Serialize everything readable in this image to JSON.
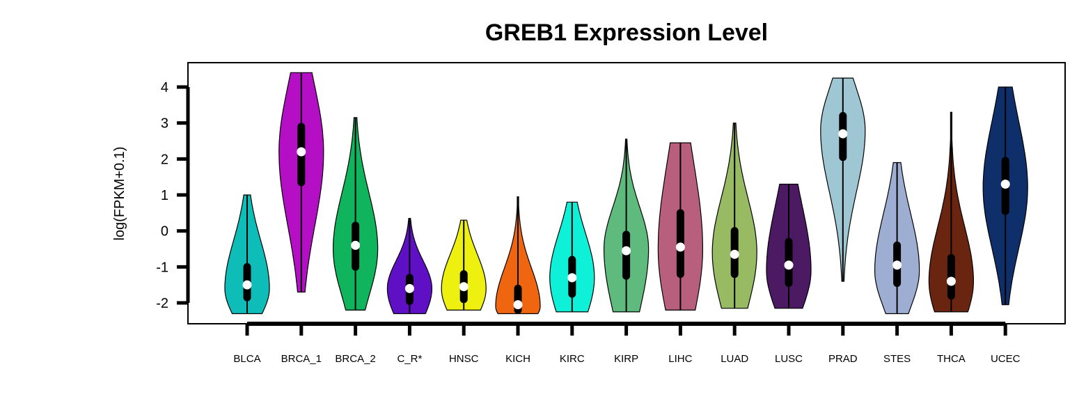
{
  "chart_data": {
    "type": "violin",
    "title": "GREB1 Expression Level",
    "xlabel": "",
    "ylabel": "log(FPKM+0.1)",
    "ylim": [
      -2.6,
      4.6
    ],
    "yticks": [
      4,
      3,
      2,
      1,
      0,
      -1,
      -2
    ],
    "grid": false,
    "legend": "none",
    "categories": [
      "BLCA",
      "BRCA_1",
      "BRCA_2",
      "C_R*",
      "HNSC",
      "KICH",
      "KIRC",
      "KIRP",
      "LIHC",
      "LUAD",
      "LUSC",
      "PRAD",
      "STES",
      "THCA",
      "UCEC"
    ],
    "series": [
      {
        "category": "BLCA",
        "color": "#0fbdb8",
        "min": -2.3,
        "max": 1.0,
        "q1": -1.85,
        "median": -1.5,
        "q3": -1.0,
        "whisker_low": -2.3,
        "whisker_high": 1.0,
        "density_peak": -1.6
      },
      {
        "category": "BRCA_1",
        "color": "#b40fc4",
        "min": -1.7,
        "max": 4.4,
        "q1": 1.35,
        "median": 2.2,
        "q3": 2.9,
        "whisker_low": -1.7,
        "whisker_high": 4.4,
        "density_peak": 2.2
      },
      {
        "category": "BRCA_2",
        "color": "#0fb45c",
        "min": -2.2,
        "max": 3.15,
        "q1": -1.0,
        "median": -0.4,
        "q3": 0.15,
        "whisker_low": -2.2,
        "whisker_high": 3.15,
        "density_peak": -0.5
      },
      {
        "category": "C_R*",
        "color": "#5f0fc4",
        "min": -2.3,
        "max": 0.35,
        "q1": -1.95,
        "median": -1.6,
        "q3": -1.3,
        "whisker_low": -2.3,
        "whisker_high": 0.35,
        "density_peak": -1.6
      },
      {
        "category": "HNSC",
        "color": "#eef00f",
        "min": -2.2,
        "max": 0.3,
        "q1": -1.9,
        "median": -1.55,
        "q3": -1.2,
        "whisker_low": -2.2,
        "whisker_high": 0.3,
        "density_peak": -1.6
      },
      {
        "category": "KICH",
        "color": "#f0650f",
        "min": -2.3,
        "max": 0.95,
        "q1": -2.2,
        "median": -2.05,
        "q3": -1.6,
        "whisker_low": -2.3,
        "whisker_high": 0.95,
        "density_peak": -2.1
      },
      {
        "category": "KIRC",
        "color": "#0ff0d8",
        "min": -2.25,
        "max": 0.8,
        "q1": -1.75,
        "median": -1.3,
        "q3": -0.8,
        "whisker_low": -2.25,
        "whisker_high": 0.8,
        "density_peak": -1.3
      },
      {
        "category": "KIRP",
        "color": "#5fba7d",
        "min": -2.25,
        "max": 2.55,
        "q1": -1.25,
        "median": -0.55,
        "q3": -0.1,
        "whisker_low": -2.25,
        "whisker_high": 2.55,
        "density_peak": -0.5
      },
      {
        "category": "LIHC",
        "color": "#b95f7e",
        "min": -2.2,
        "max": 2.45,
        "q1": -1.2,
        "median": -0.45,
        "q3": 0.5,
        "whisker_low": -2.2,
        "whisker_high": 2.45,
        "density_peak": -0.5
      },
      {
        "category": "LUAD",
        "color": "#98ba63",
        "min": -2.15,
        "max": 3.0,
        "q1": -1.2,
        "median": -0.65,
        "q3": 0.0,
        "whisker_low": -2.15,
        "whisker_high": 3.0,
        "density_peak": -0.6
      },
      {
        "category": "LUSC",
        "color": "#4b1a63",
        "min": -2.15,
        "max": 1.3,
        "q1": -1.45,
        "median": -0.95,
        "q3": -0.3,
        "whisker_low": -2.15,
        "whisker_high": 1.3,
        "density_peak": -1.1
      },
      {
        "category": "PRAD",
        "color": "#9ec6d3",
        "min": -1.4,
        "max": 4.25,
        "q1": 2.05,
        "median": 2.7,
        "q3": 3.2,
        "whisker_low": -1.4,
        "whisker_high": 4.25,
        "density_peak": 2.8
      },
      {
        "category": "STES",
        "color": "#9eaed3",
        "min": -2.3,
        "max": 1.9,
        "q1": -1.45,
        "median": -0.95,
        "q3": -0.4,
        "whisker_low": -2.3,
        "whisker_high": 1.9,
        "density_peak": -1.1
      },
      {
        "category": "THCA",
        "color": "#6a2510",
        "min": -2.25,
        "max": 3.3,
        "q1": -1.8,
        "median": -1.4,
        "q3": -0.75,
        "whisker_low": -2.25,
        "whisker_high": 3.3,
        "density_peak": -1.4
      },
      {
        "category": "UCEC",
        "color": "#0e2f69",
        "min": -2.05,
        "max": 4.0,
        "q1": 0.55,
        "median": 1.3,
        "q3": 1.95,
        "whisker_low": -2.05,
        "whisker_high": 4.0,
        "density_peak": 1.2
      }
    ]
  }
}
